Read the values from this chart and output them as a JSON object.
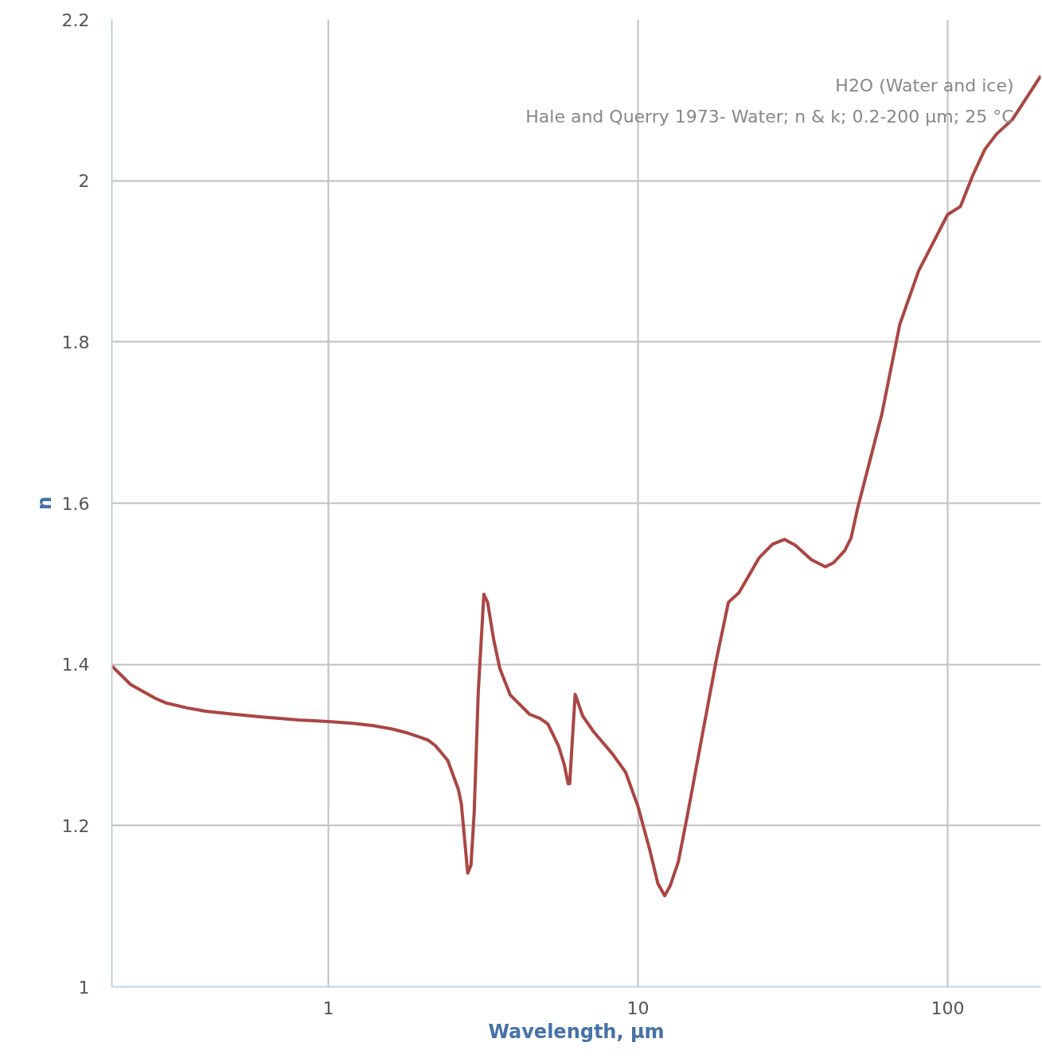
{
  "chart_data": {
    "type": "line",
    "xlabel": "Wavelength, µm",
    "ylabel": "n",
    "annotations": [
      "H2O (Water and ice)",
      "Hale and Querry 1973- Water; n & k; 0.2-200 µm; 25 °C"
    ],
    "log": "x",
    "xlim": [
      0.2,
      200
    ],
    "ylim": [
      1,
      2.2
    ],
    "xticks": [
      1,
      10,
      100
    ],
    "yticks": [
      1,
      1.2,
      1.4,
      1.6,
      1.8,
      2,
      2.2
    ],
    "grid": true,
    "marker": "none",
    "line_style": "solid",
    "series": [
      {
        "color": "#aa4643",
        "x": [
          0.2,
          0.23,
          0.276,
          0.3,
          0.35,
          0.4,
          0.5,
          0.6,
          0.8,
          1.0,
          1.2,
          1.4,
          1.6,
          1.8,
          2.0,
          2.1,
          2.22,
          2.43,
          2.63,
          2.69,
          2.82,
          2.89,
          2.96,
          3.05,
          3.18,
          3.27,
          3.42,
          3.58,
          3.87,
          4.47,
          4.83,
          5.12,
          5.54,
          5.78,
          5.95,
          6.02,
          6.27,
          6.63,
          7.21,
          8.27,
          9.13,
          10.0,
          10.9,
          11.6,
          12.2,
          12.7,
          13.5,
          14.4,
          16.2,
          17.9,
          19.6,
          21.2,
          24.6,
          27.2,
          29.7,
          32.2,
          36.3,
          40.3,
          42.8,
          46.5,
          48.8,
          51.1,
          61.3,
          70.1,
          80.6,
          100,
          110,
          121,
          132,
          144,
          162,
          200
        ],
        "values": [
          1.398,
          1.375,
          1.358,
          1.352,
          1.346,
          1.342,
          1.338,
          1.335,
          1.331,
          1.329,
          1.327,
          1.324,
          1.32,
          1.315,
          1.309,
          1.306,
          1.299,
          1.281,
          1.245,
          1.227,
          1.141,
          1.151,
          1.217,
          1.365,
          1.487,
          1.477,
          1.431,
          1.395,
          1.362,
          1.338,
          1.333,
          1.326,
          1.299,
          1.276,
          1.252,
          1.252,
          1.363,
          1.336,
          1.316,
          1.289,
          1.266,
          1.224,
          1.171,
          1.128,
          1.113,
          1.125,
          1.155,
          1.21,
          1.316,
          1.405,
          1.477,
          1.489,
          1.532,
          1.549,
          1.555,
          1.548,
          1.53,
          1.521,
          1.526,
          1.541,
          1.557,
          1.592,
          1.71,
          1.822,
          1.888,
          1.958,
          1.968,
          2.008,
          2.039,
          2.058,
          2.076,
          2.13
        ]
      }
    ]
  }
}
